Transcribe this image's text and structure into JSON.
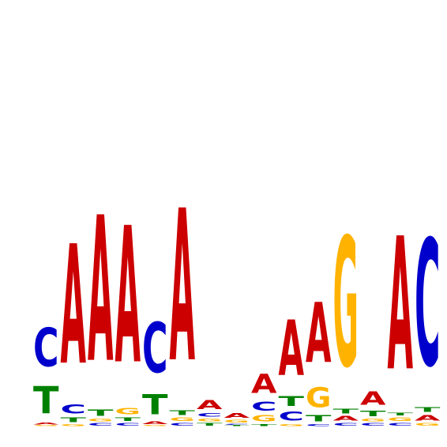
{
  "colors": {
    "A": "#cc0000",
    "C": "#0000cc",
    "G": "#ffb300",
    "T": "#008000"
  },
  "scale": {
    "max_bits": 2.0
  },
  "positions": [
    {
      "letters": [
        {
          "base": "G",
          "bits": 0.01
        },
        {
          "base": "A",
          "bits": 0.02
        },
        {
          "base": "T",
          "bits": 0.3
        },
        {
          "base": "C",
          "bits": 0.43
        }
      ]
    },
    {
      "letters": [
        {
          "base": "G",
          "bits": 0.02
        },
        {
          "base": "T",
          "bits": 0.05
        },
        {
          "base": "C",
          "bits": 0.1
        },
        {
          "base": "A",
          "bits": 1.33
        }
      ]
    },
    {
      "letters": [
        {
          "base": "C",
          "bits": 0.03
        },
        {
          "base": "G",
          "bits": 0.03
        },
        {
          "base": "T",
          "bits": 0.07
        },
        {
          "base": "A",
          "bits": 1.62
        }
      ]
    },
    {
      "letters": [
        {
          "base": "C",
          "bits": 0.03
        },
        {
          "base": "T",
          "bits": 0.04
        },
        {
          "base": "G",
          "bits": 0.07
        },
        {
          "base": "A",
          "bits": 1.52
        }
      ]
    },
    {
      "letters": [
        {
          "base": "G",
          "bits": 0.01
        },
        {
          "base": "A",
          "bits": 0.03
        },
        {
          "base": "T",
          "bits": 0.22
        },
        {
          "base": "C",
          "bits": 0.56
        }
      ]
    },
    {
      "letters": [
        {
          "base": "C",
          "bits": 0.03
        },
        {
          "base": "G",
          "bits": 0.04
        },
        {
          "base": "T",
          "bits": 0.05
        },
        {
          "base": "A",
          "bits": 1.69
        }
      ]
    },
    {
      "letters": [
        {
          "base": "T",
          "bits": 0.03
        },
        {
          "base": "G",
          "bits": 0.03
        },
        {
          "base": "C",
          "bits": 0.04
        },
        {
          "base": "A",
          "bits": 0.1
        }
      ]
    },
    {
      "letters": [
        {
          "base": "T",
          "bits": 0.01
        },
        {
          "base": "C",
          "bits": 0.01
        },
        {
          "base": "G",
          "bits": 0.03
        },
        {
          "base": "A",
          "bits": 0.05
        }
      ]
    },
    {
      "letters": [
        {
          "base": "T",
          "bits": 0.02
        },
        {
          "base": "G",
          "bits": 0.07
        },
        {
          "base": "C",
          "bits": 0.1
        },
        {
          "base": "A",
          "bits": 0.21
        }
      ]
    },
    {
      "letters": [
        {
          "base": "G",
          "bits": 0.02
        },
        {
          "base": "C",
          "bits": 0.1
        },
        {
          "base": "T",
          "bits": 0.11
        },
        {
          "base": "A",
          "bits": 0.62
        }
      ]
    },
    {
      "letters": [
        {
          "base": "C",
          "bits": 0.02
        },
        {
          "base": "T",
          "bits": 0.07
        },
        {
          "base": "G",
          "bits": 0.22
        },
        {
          "base": "A",
          "bits": 0.67
        }
      ]
    },
    {
      "letters": [
        {
          "base": "C",
          "bits": 0.03
        },
        {
          "base": "A",
          "bits": 0.05
        },
        {
          "base": "T",
          "bits": 0.05
        },
        {
          "base": "G",
          "bits": 1.44
        }
      ]
    },
    {
      "letters": [
        {
          "base": "C",
          "bits": 0.03
        },
        {
          "base": "G",
          "bits": 0.03
        },
        {
          "base": "T",
          "bits": 0.06
        },
        {
          "base": "A",
          "bits": 0.15
        }
      ]
    },
    {
      "letters": [
        {
          "base": "C",
          "bits": 0.03
        },
        {
          "base": "G",
          "bits": 0.04
        },
        {
          "base": "T",
          "bits": 0.03
        },
        {
          "base": "A",
          "bits": 1.48
        }
      ]
    },
    {
      "letters": [
        {
          "base": "G",
          "bits": 0.03
        },
        {
          "base": "A",
          "bits": 0.06
        },
        {
          "base": "T",
          "bits": 0.05
        },
        {
          "base": "C",
          "bits": 1.41
        }
      ]
    }
  ]
}
